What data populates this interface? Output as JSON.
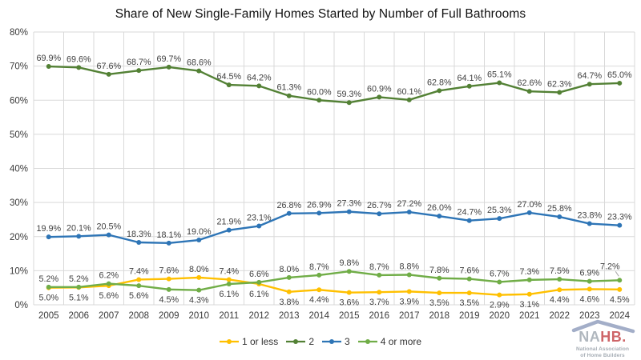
{
  "title": "Share of New Single-Family Homes Started by Number of Full Bathrooms",
  "chart_data": {
    "type": "line",
    "title": "Share of New Single-Family Homes Started by Number of Full Bathrooms",
    "x": [
      2005,
      2006,
      2007,
      2008,
      2009,
      2010,
      2011,
      2012,
      2013,
      2014,
      2015,
      2016,
      2017,
      2018,
      2019,
      2020,
      2021,
      2022,
      2023,
      2024
    ],
    "xlabel": "",
    "ylabel": "",
    "ylim": [
      0,
      80
    ],
    "ytick_step": 10,
    "ytick_suffix": "%",
    "grid": true,
    "legend_position": "bottom",
    "data_label_format": "one_decimal_percent",
    "series": [
      {
        "name": "1 or less",
        "color": "#FFC000",
        "values": [
          5.0,
          5.1,
          5.6,
          7.4,
          7.6,
          8.0,
          7.4,
          6.1,
          3.8,
          4.4,
          3.6,
          3.7,
          3.9,
          3.5,
          3.5,
          2.9,
          3.1,
          4.4,
          4.6,
          4.5
        ]
      },
      {
        "name": "2",
        "color": "#538135",
        "values": [
          69.9,
          69.6,
          67.6,
          68.7,
          69.7,
          68.6,
          64.5,
          64.2,
          61.3,
          60.0,
          59.3,
          60.9,
          60.1,
          62.8,
          64.1,
          65.1,
          62.6,
          62.3,
          64.7,
          65.0
        ]
      },
      {
        "name": "3",
        "color": "#2E75B6",
        "values": [
          19.9,
          20.1,
          20.5,
          18.3,
          18.1,
          19.0,
          21.9,
          23.1,
          26.8,
          26.9,
          27.3,
          26.7,
          27.2,
          26.0,
          24.7,
          25.3,
          27.0,
          25.8,
          23.8,
          23.3
        ]
      },
      {
        "name": "4 or more",
        "color": "#70AD47",
        "values": [
          5.2,
          5.2,
          6.2,
          5.6,
          4.5,
          4.3,
          6.1,
          6.6,
          8.0,
          8.7,
          9.8,
          8.7,
          8.8,
          7.8,
          7.6,
          6.7,
          7.3,
          7.5,
          6.9,
          7.2
        ]
      }
    ]
  },
  "colors": {
    "grid": "#D9D9D9",
    "axis_label": "#3a3a3a",
    "data_label": "#404040",
    "leader_line": "#A6A6A6",
    "logo_red": "#C13A3E",
    "logo_roof": "#7586AD",
    "logo_gray": "#9AA3AD"
  },
  "logo": {
    "name_part1": "NA",
    "name_part2": "HB.",
    "subtitle_line1": "National Association",
    "subtitle_line2": "of Home Builders"
  }
}
